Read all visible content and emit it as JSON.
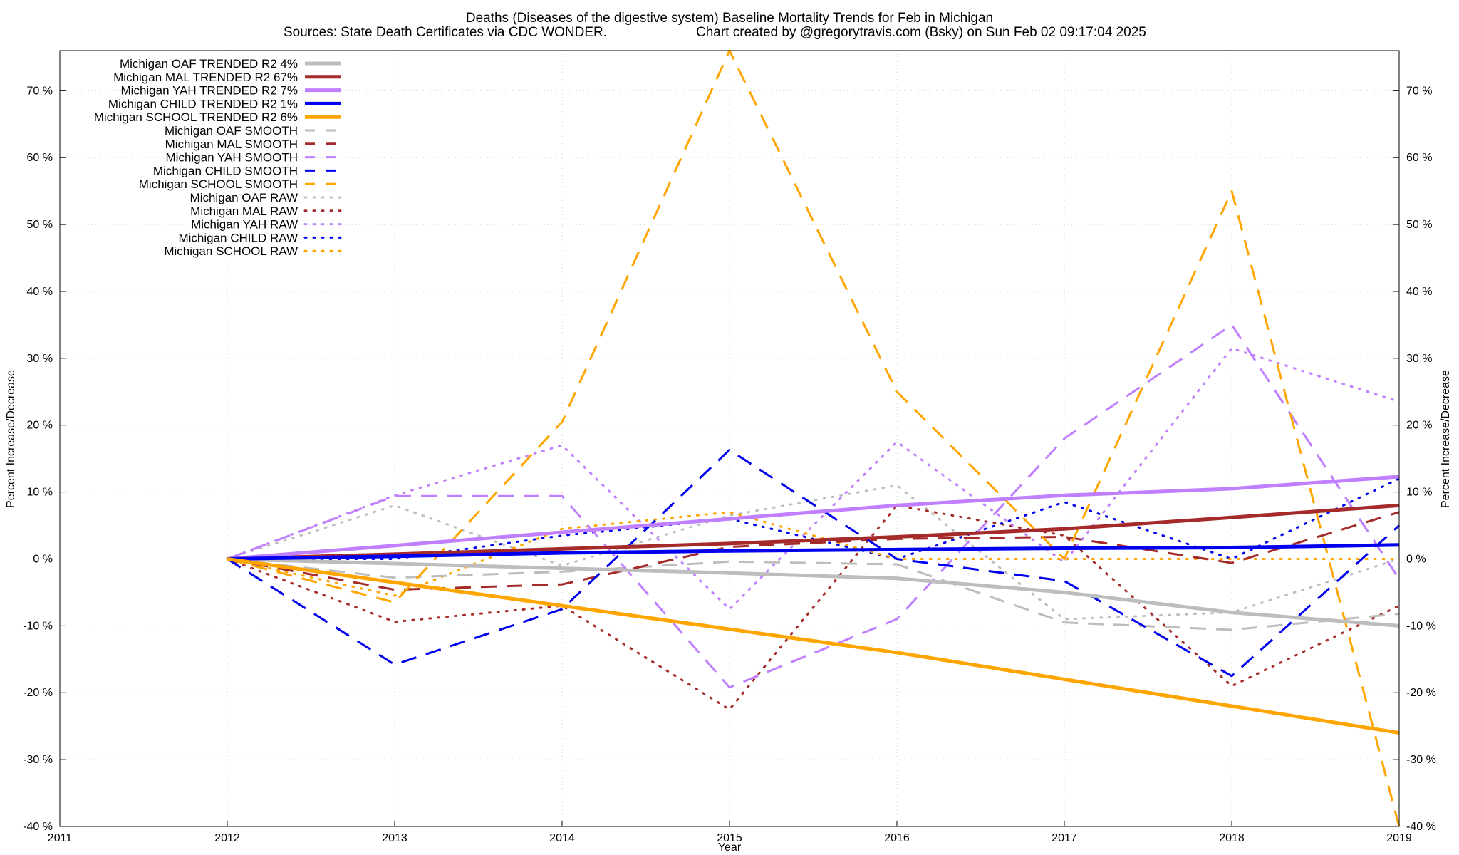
{
  "chart_data": {
    "type": "line",
    "title": "Deaths (Diseases of the digestive system)  Baseline Mortality Trends for Feb in Michigan",
    "subtitle_left": "Sources: State Death Certificates via CDC WONDER.",
    "subtitle_right": "Chart created by @gregorytravis.com (Bsky) on Sun Feb 02 09:17:04 2025",
    "xlabel": "Year",
    "ylabel": "Percent Increase/Decrease",
    "y2label": "Percent Increase/Decrease",
    "xlim": [
      2011,
      2019
    ],
    "ylim": [
      -40,
      76
    ],
    "x_ticks": [
      "2011",
      "2012",
      "2013",
      "2014",
      "2015",
      "2016",
      "2017",
      "2018",
      "2019"
    ],
    "y_ticks": [
      {
        "value": 70,
        "label": "70 %"
      },
      {
        "value": 60,
        "label": "60 %"
      },
      {
        "value": 50,
        "label": "50 %"
      },
      {
        "value": 40,
        "label": "40 %"
      },
      {
        "value": 30,
        "label": "30 %"
      },
      {
        "value": 20,
        "label": "20 %"
      },
      {
        "value": 10,
        "label": "10 %"
      },
      {
        "value": 0,
        "label": "0 %"
      },
      {
        "value": -10,
        "label": "-10 %"
      },
      {
        "value": -20,
        "label": "-20 %"
      },
      {
        "value": -30,
        "label": "-30 %"
      },
      {
        "value": -40,
        "label": "-40 %"
      }
    ],
    "grid": true,
    "legend_position": "top-left",
    "series": [
      {
        "name": "Michigan OAF TRENDED R2   4%",
        "style": "solid",
        "color": "#bdbdbd",
        "x": [
          2012,
          2013,
          2014,
          2015,
          2016,
          2017,
          2018,
          2019
        ],
        "y": [
          0,
          -0.7,
          -1.4,
          -2.1,
          -2.9,
          -5.0,
          -8.0,
          -10.0
        ]
      },
      {
        "name": "Michigan MAL TRENDED R2  67%",
        "style": "solid",
        "color": "#a52a2a",
        "x": [
          2012,
          2013,
          2014,
          2015,
          2016,
          2017,
          2018,
          2019
        ],
        "y": [
          0,
          0.7,
          1.5,
          2.3,
          3.3,
          4.5,
          6.2,
          8.0
        ]
      },
      {
        "name": "Michigan YAH TRENDED R2   7%",
        "style": "solid",
        "color": "#bf7fff",
        "x": [
          2012,
          2013,
          2014,
          2015,
          2016,
          2017,
          2018,
          2019
        ],
        "y": [
          0,
          2.0,
          4.0,
          6.0,
          8.0,
          9.5,
          10.5,
          12.3
        ]
      },
      {
        "name": "Michigan CHILD TRENDED R2   1%",
        "style": "solid",
        "color": "#0000ee",
        "x": [
          2012,
          2013,
          2014,
          2015,
          2016,
          2017,
          2018,
          2019
        ],
        "y": [
          0,
          0.4,
          0.9,
          1.2,
          1.4,
          1.6,
          1.7,
          2.1
        ]
      },
      {
        "name": "Michigan SCHOOL TRENDED R2   6%",
        "style": "solid",
        "color": "#ffa500",
        "x": [
          2012,
          2013,
          2014,
          2015,
          2016,
          2017,
          2018,
          2019
        ],
        "y": [
          0,
          -3.5,
          -7.0,
          -10.5,
          -14.0,
          -18.0,
          -22.0,
          -26.0
        ]
      },
      {
        "name": "Michigan OAF SMOOTH",
        "style": "dashed",
        "color": "#bdbdbd",
        "x": [
          2012,
          2013,
          2014,
          2015,
          2016,
          2017,
          2018,
          2019
        ],
        "y": [
          0,
          -2.8,
          -1.9,
          -0.4,
          -0.8,
          -9.5,
          -10.6,
          -8.2
        ]
      },
      {
        "name": "Michigan MAL SMOOTH",
        "style": "dashed",
        "color": "#a52a2a",
        "x": [
          2012,
          2013,
          2014,
          2015,
          2016,
          2017,
          2018,
          2019
        ],
        "y": [
          0,
          -4.6,
          -3.8,
          1.8,
          3.0,
          3.3,
          -0.6,
          7.0
        ]
      },
      {
        "name": "Michigan YAH SMOOTH",
        "style": "dashed",
        "color": "#bf7fff",
        "x": [
          2012,
          2013,
          2014,
          2015,
          2016,
          2017,
          2018,
          2019
        ],
        "y": [
          0,
          9.4,
          9.4,
          -19.2,
          -9.0,
          18.0,
          35.0,
          -3.0
        ]
      },
      {
        "name": "Michigan CHILD SMOOTH",
        "style": "dashed",
        "color": "#0000ee",
        "x": [
          2012,
          2013,
          2014,
          2015,
          2016,
          2017,
          2018,
          2019
        ],
        "y": [
          0,
          -15.8,
          -7.5,
          16.3,
          0.0,
          -3.3,
          -17.5,
          5.0
        ]
      },
      {
        "name": "Michigan SCHOOL SMOOTH",
        "style": "dashed",
        "color": "#ffa500",
        "x": [
          2012,
          2013,
          2014,
          2015,
          2016,
          2017,
          2018,
          2019
        ],
        "y": [
          0,
          -6.5,
          20.5,
          76.0,
          25.0,
          0.0,
          55.0,
          -40.0
        ]
      },
      {
        "name": "Michigan OAF RAW",
        "style": "dotted",
        "color": "#bdbdbd",
        "x": [
          2012,
          2013,
          2014,
          2015,
          2016,
          2017,
          2018,
          2019
        ],
        "y": [
          0,
          8.0,
          -1.0,
          6.5,
          11.0,
          -9.0,
          -8.0,
          0.0
        ]
      },
      {
        "name": "Michigan MAL RAW",
        "style": "dotted",
        "color": "#a52a2a",
        "x": [
          2012,
          2013,
          2014,
          2015,
          2016,
          2017,
          2018,
          2019
        ],
        "y": [
          0,
          -9.4,
          -7.0,
          -22.5,
          8.0,
          3.5,
          -19.0,
          -7.0
        ]
      },
      {
        "name": "Michigan YAH RAW",
        "style": "dotted",
        "color": "#bf7fff",
        "x": [
          2012,
          2013,
          2014,
          2015,
          2016,
          2017,
          2018,
          2019
        ],
        "y": [
          0,
          9.5,
          17.0,
          -7.5,
          17.5,
          -0.5,
          31.5,
          23.5
        ]
      },
      {
        "name": "Michigan CHILD RAW",
        "style": "dotted",
        "color": "#0000ee",
        "x": [
          2012,
          2013,
          2014,
          2015,
          2016,
          2017,
          2018,
          2019
        ],
        "y": [
          0,
          0.0,
          3.5,
          6.0,
          0.0,
          8.5,
          0.0,
          12.0
        ]
      },
      {
        "name": "Michigan SCHOOL RAW",
        "style": "dotted",
        "color": "#ffa500",
        "x": [
          2012,
          2013,
          2014,
          2015,
          2016,
          2017,
          2018,
          2019
        ],
        "y": [
          0,
          -5.5,
          4.5,
          7.0,
          0.0,
          0.0,
          0.0,
          0.0
        ]
      }
    ]
  }
}
